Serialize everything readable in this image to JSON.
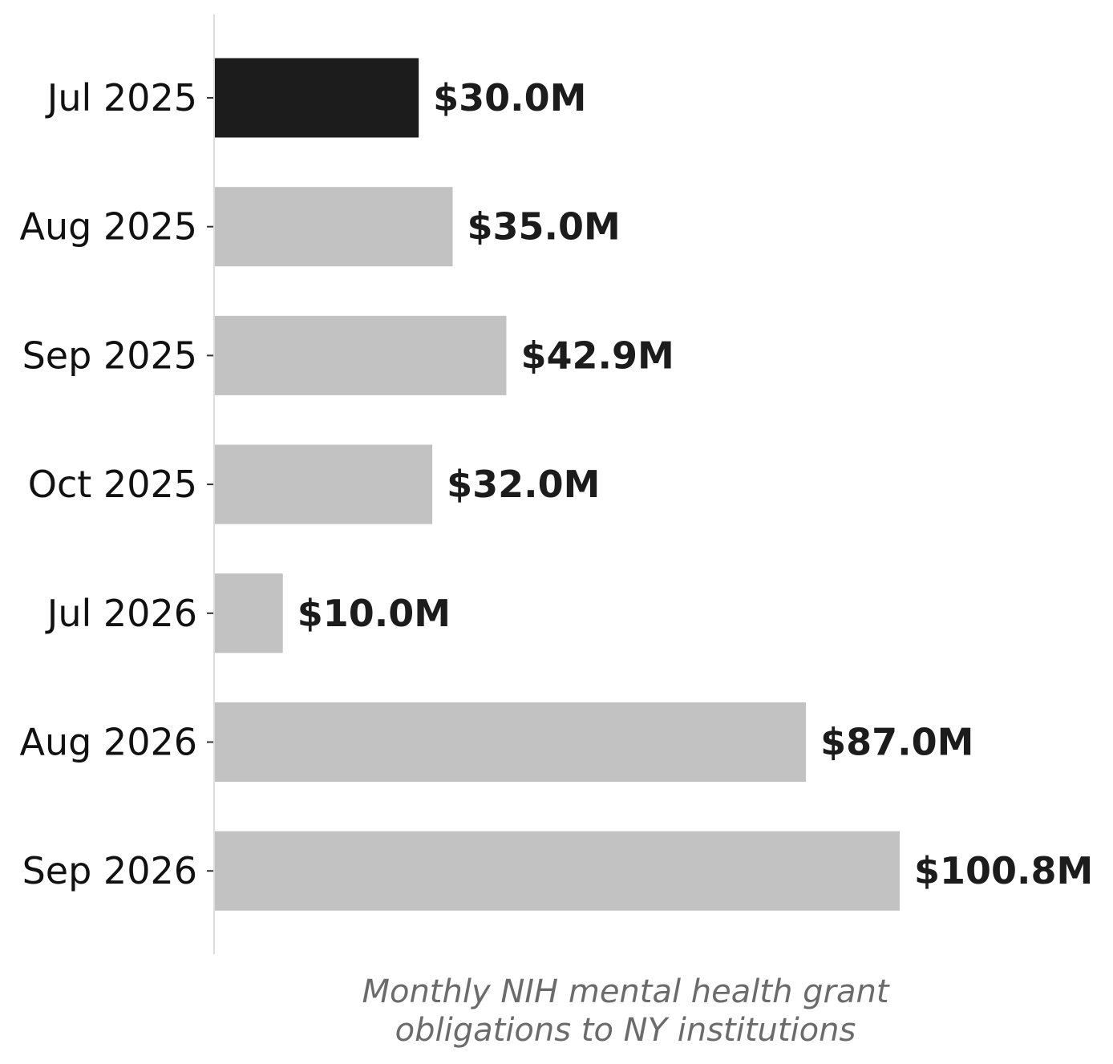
{
  "chart_data": {
    "type": "bar",
    "orientation": "horizontal",
    "categories": [
      "Jul 2025",
      "Aug 2025",
      "Sep 2025",
      "Oct 2025",
      "Jul 2026",
      "Aug 2026",
      "Sep 2026"
    ],
    "values": [
      30.0,
      35.0,
      42.9,
      32.0,
      10.0,
      87.0,
      100.8
    ],
    "value_labels": [
      "$30.0M",
      "$35.0M",
      "$42.9M",
      "$32.0M",
      "$10.0M",
      "$87.0M",
      "$100.8M"
    ],
    "units": "$M",
    "xlim": [
      0,
      100.8
    ],
    "highlight_category": "Jul 2025",
    "colors": {
      "highlight": "#1c1c1c",
      "default": "#c2c2c2",
      "axis": "#dddddd",
      "tick": "#333333"
    },
    "grid": false,
    "x_axis_visible": false,
    "caption_lines": [
      "Monthly NIH mental health grant",
      "obligations to NY institutions"
    ]
  }
}
